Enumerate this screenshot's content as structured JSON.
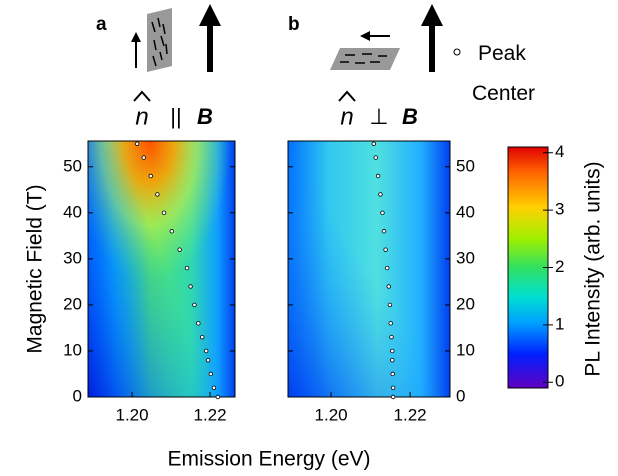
{
  "chart_data": [
    {
      "type": "scatter",
      "panel_label": "a",
      "title_symbol": "n",
      "title_relation": "||",
      "title_field": "B",
      "xlabel": "Emission Energy (eV)",
      "ylabel": "Magnetic Field (T)",
      "xlim": [
        1.1887,
        1.2264
      ],
      "ylim": [
        0,
        55.6
      ],
      "xticks": [
        {
          "value": 1.2,
          "label": "1.20"
        },
        {
          "value": 1.22,
          "label": "1.22"
        }
      ],
      "yticks": [
        0,
        10,
        20,
        30,
        40,
        50
      ],
      "series": [
        {
          "name": "Peak Center",
          "color": "#000000",
          "x": [
            1.222,
            1.221,
            1.2202,
            1.2195,
            1.219,
            1.218,
            1.217,
            1.216,
            1.215,
            1.2141,
            1.2122,
            1.2102,
            1.2082,
            1.2065,
            1.2048,
            1.203,
            1.2013
          ],
          "values": [
            0,
            2,
            5,
            8,
            10,
            13,
            16,
            20,
            24,
            28,
            32,
            36,
            40,
            44,
            48,
            52,
            55
          ]
        }
      ]
    },
    {
      "type": "scatter",
      "panel_label": "b",
      "title_symbol": "n",
      "title_relation": "⊥",
      "title_field": "B",
      "xlim": [
        1.1891,
        1.2301
      ],
      "ylim": [
        0,
        55.6
      ],
      "xticks": [
        {
          "value": 1.2,
          "label": "1.20"
        },
        {
          "value": 1.22,
          "label": "1.22"
        }
      ],
      "yticks": [
        0,
        10,
        20,
        30,
        40,
        50
      ],
      "series": [
        {
          "color": "#000000",
          "x": [
            1.2157,
            1.2157,
            1.2156,
            1.2155,
            1.2155,
            1.2153,
            1.2151,
            1.2149,
            1.2146,
            1.2142,
            1.2138,
            1.2134,
            1.213,
            1.2125,
            1.2119,
            1.2113,
            1.2108
          ],
          "values": [
            0,
            2,
            5,
            8,
            10,
            13,
            16,
            20,
            24,
            28,
            32,
            36,
            40,
            44,
            48,
            52,
            55
          ]
        }
      ]
    },
    {
      "type": "colorbar",
      "label": "PL Intensity (arb. units)",
      "ylim": [
        -0.1,
        4.1
      ],
      "yticks": [
        0,
        1,
        2,
        3,
        4
      ]
    }
  ]
}
